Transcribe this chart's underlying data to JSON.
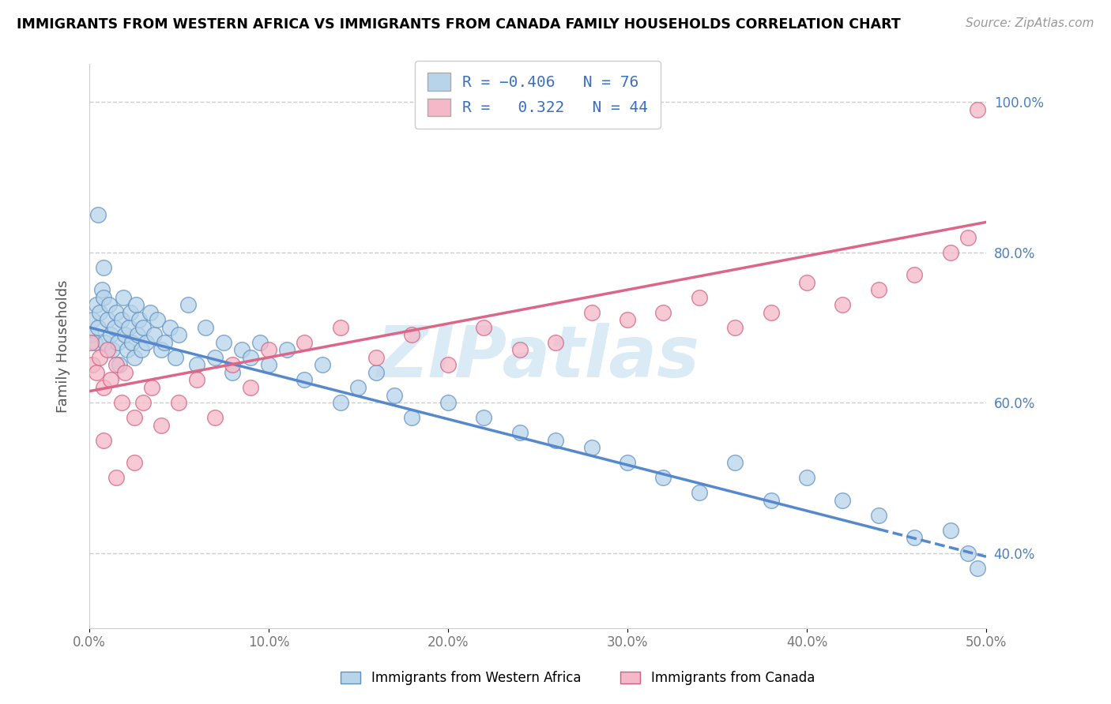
{
  "title": "IMMIGRANTS FROM WESTERN AFRICA VS IMMIGRANTS FROM CANADA FAMILY HOUSEHOLDS CORRELATION CHART",
  "source": "Source: ZipAtlas.com",
  "xlabel_blue": "Immigrants from Western Africa",
  "xlabel_pink": "Immigrants from Canada",
  "ylabel": "Family Households",
  "r_blue": -0.406,
  "n_blue": 76,
  "r_pink": 0.322,
  "n_pink": 44,
  "color_blue": "#b8d4ea",
  "color_pink": "#f5b8c8",
  "edge_blue": "#6090c0",
  "edge_pink": "#d06080",
  "trendline_blue": "#5588cc",
  "trendline_pink": "#dd6688",
  "watermark_color": "#d5e8f5",
  "xlim": [
    0.0,
    0.5
  ],
  "ylim": [
    0.3,
    1.05
  ],
  "yticks": [
    0.4,
    0.6,
    0.8,
    1.0
  ],
  "ytick_labels": [
    "40.0%",
    "60.0%",
    "80.0%",
    "100.0%"
  ],
  "xticks": [
    0.0,
    0.1,
    0.2,
    0.3,
    0.4,
    0.5
  ],
  "xtick_labels": [
    "0.0%",
    "10.0%",
    "20.0%",
    "30.0%",
    "40.0%",
    "50.0%"
  ],
  "blue_x": [
    0.001,
    0.002,
    0.003,
    0.004,
    0.005,
    0.006,
    0.007,
    0.008,
    0.009,
    0.01,
    0.011,
    0.012,
    0.013,
    0.014,
    0.015,
    0.016,
    0.017,
    0.018,
    0.019,
    0.02,
    0.021,
    0.022,
    0.023,
    0.024,
    0.025,
    0.026,
    0.027,
    0.028,
    0.029,
    0.03,
    0.032,
    0.034,
    0.036,
    0.038,
    0.04,
    0.042,
    0.045,
    0.048,
    0.05,
    0.055,
    0.06,
    0.065,
    0.07,
    0.075,
    0.08,
    0.085,
    0.09,
    0.095,
    0.1,
    0.11,
    0.12,
    0.13,
    0.14,
    0.15,
    0.16,
    0.17,
    0.18,
    0.2,
    0.22,
    0.24,
    0.26,
    0.28,
    0.3,
    0.32,
    0.34,
    0.36,
    0.38,
    0.4,
    0.42,
    0.44,
    0.46,
    0.48,
    0.49,
    0.495,
    0.005,
    0.008
  ],
  "blue_y": [
    0.69,
    0.71,
    0.68,
    0.73,
    0.7,
    0.72,
    0.75,
    0.74,
    0.68,
    0.71,
    0.73,
    0.69,
    0.67,
    0.7,
    0.72,
    0.68,
    0.65,
    0.71,
    0.74,
    0.69,
    0.67,
    0.7,
    0.72,
    0.68,
    0.66,
    0.73,
    0.69,
    0.71,
    0.67,
    0.7,
    0.68,
    0.72,
    0.69,
    0.71,
    0.67,
    0.68,
    0.7,
    0.66,
    0.69,
    0.73,
    0.65,
    0.7,
    0.66,
    0.68,
    0.64,
    0.67,
    0.66,
    0.68,
    0.65,
    0.67,
    0.63,
    0.65,
    0.6,
    0.62,
    0.64,
    0.61,
    0.58,
    0.6,
    0.58,
    0.56,
    0.55,
    0.54,
    0.52,
    0.5,
    0.48,
    0.52,
    0.47,
    0.5,
    0.47,
    0.45,
    0.42,
    0.43,
    0.4,
    0.38,
    0.85,
    0.78
  ],
  "pink_x": [
    0.001,
    0.002,
    0.004,
    0.006,
    0.008,
    0.01,
    0.012,
    0.015,
    0.018,
    0.02,
    0.025,
    0.03,
    0.035,
    0.04,
    0.05,
    0.06,
    0.07,
    0.08,
    0.09,
    0.1,
    0.12,
    0.14,
    0.16,
    0.18,
    0.2,
    0.22,
    0.24,
    0.26,
    0.28,
    0.3,
    0.32,
    0.34,
    0.36,
    0.38,
    0.4,
    0.42,
    0.44,
    0.46,
    0.48,
    0.49,
    0.495,
    0.008,
    0.015,
    0.025
  ],
  "pink_y": [
    0.68,
    0.65,
    0.64,
    0.66,
    0.62,
    0.67,
    0.63,
    0.65,
    0.6,
    0.64,
    0.58,
    0.6,
    0.62,
    0.57,
    0.6,
    0.63,
    0.58,
    0.65,
    0.62,
    0.67,
    0.68,
    0.7,
    0.66,
    0.69,
    0.65,
    0.7,
    0.67,
    0.68,
    0.72,
    0.71,
    0.72,
    0.74,
    0.7,
    0.72,
    0.76,
    0.73,
    0.75,
    0.77,
    0.8,
    0.82,
    0.99,
    0.55,
    0.5,
    0.52
  ],
  "blue_trend_x": [
    0.0,
    0.5
  ],
  "blue_trend_y": [
    0.7,
    0.395
  ],
  "pink_trend_x": [
    0.0,
    0.5
  ],
  "pink_trend_y": [
    0.615,
    0.84
  ]
}
